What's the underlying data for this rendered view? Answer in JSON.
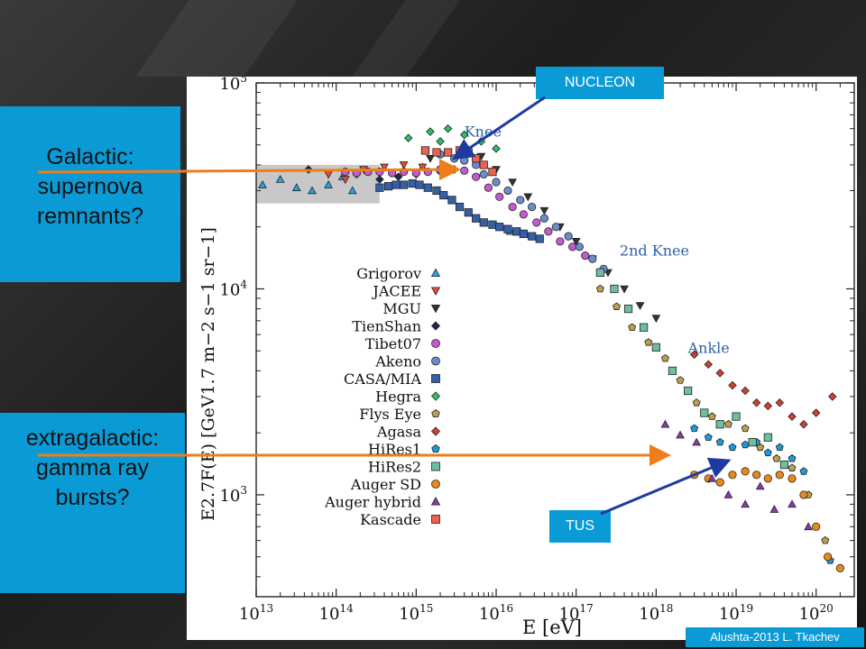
{
  "slide": {
    "galactic_lines": [
      "Galactic:",
      "supernova",
      "remnants?"
    ],
    "extragalactic_lines": [
      "extragalactic:",
      "gamma ray",
      "bursts?"
    ],
    "nucleon_label": "NUCLEON",
    "tus_label": "TUS",
    "credit": "Alushta-2013  L. Tkachev",
    "colors": {
      "callout_bg": "#0a9bd6",
      "arrow_orange": "#f07c1a",
      "arrow_blue": "#1f3a9e"
    }
  },
  "chart_data": {
    "type": "scatter",
    "title": "",
    "xlabel": "E  [eV]",
    "ylabel": "E2.7F(E) [GeV1.7 m−2 s−1 sr−1]",
    "x_scale": "log",
    "y_scale": "log",
    "xlim": [
      10000000000000.0,
      3e+20
    ],
    "ylim": [
      320,
      100000
    ],
    "x_ticks": [
      "10^13",
      "10^14",
      "10^15",
      "10^16",
      "10^17",
      "10^18",
      "10^19",
      "10^20"
    ],
    "y_ticks": [
      "10^3",
      "10^4",
      "10^5"
    ],
    "annotations": [
      {
        "text": "Knee",
        "x": 4000000000000000.0,
        "y": 55000
      },
      {
        "text": "2nd Knee",
        "x": 3.5e+17,
        "y": 14500
      },
      {
        "text": "Ankle",
        "x": 2.5e+18,
        "y": 4900
      }
    ],
    "band": {
      "x": [
        10000000000000.0,
        350000000000000.0
      ],
      "y": [
        26000,
        40000
      ]
    },
    "legend_position": "left",
    "series": [
      {
        "name": "Grigorov",
        "marker": "triangle-up",
        "color": "#29a3e0",
        "points": [
          [
            12000000000000.0,
            32000
          ],
          [
            20000000000000.0,
            34000
          ],
          [
            32000000000000.0,
            31000
          ],
          [
            50000000000000.0,
            30000
          ],
          [
            80000000000000.0,
            32000
          ],
          [
            120000000000000.0,
            35000
          ],
          [
            160000000000000.0,
            30000
          ],
          [
            1.5e+16,
            19000
          ],
          [
            1200000000000000.0,
            39000
          ]
        ]
      },
      {
        "name": "JACEE",
        "marker": "triangle-down",
        "color": "#e84a3a",
        "points": [
          [
            80000000000000.0,
            36000
          ],
          [
            130000000000000.0,
            34000
          ],
          [
            220000000000000.0,
            38000
          ],
          [
            400000000000000.0,
            39000
          ],
          [
            700000000000000.0,
            40000
          ],
          [
            1200000000000000.0,
            39000
          ]
        ]
      },
      {
        "name": "MGU",
        "marker": "triangle-down",
        "color": "#333333",
        "points": [
          [
            1500000000000000.0,
            43000
          ],
          [
            2500000000000000.0,
            46000
          ],
          [
            4000000000000000.0,
            48000
          ],
          [
            6500000000000000.0,
            44000
          ],
          [
            1e+16,
            38000
          ],
          [
            1.6e+16,
            33000
          ],
          [
            2.5e+16,
            28000
          ],
          [
            4e+16,
            24000
          ],
          [
            6.3e+16,
            20000
          ],
          [
            1e+17,
            17000
          ],
          [
            1.6e+17,
            14000
          ],
          [
            2.5e+17,
            12000
          ],
          [
            4e+17,
            10000
          ],
          [
            6.3e+17,
            8300
          ],
          [
            1e+18,
            7200
          ]
        ]
      },
      {
        "name": "TienShan",
        "marker": "diamond",
        "color": "#1a2a4a",
        "points": [
          [
            45000000000000.0,
            38000
          ],
          [
            180000000000000.0,
            36000
          ],
          [
            350000000000000.0,
            34000
          ],
          [
            600000000000000.0,
            35000
          ],
          [
            1000000000000000.0,
            36000
          ],
          [
            2000000000000000.0,
            37000
          ],
          [
            3000000000000000.0,
            38000
          ]
        ]
      },
      {
        "name": "Tibet07",
        "marker": "circle",
        "color": "#c35ad0",
        "points": [
          [
            130000000000000.0,
            37000
          ],
          [
            180000000000000.0,
            36500
          ],
          [
            250000000000000.0,
            37000
          ],
          [
            350000000000000.0,
            37000
          ],
          [
            500000000000000.0,
            36500
          ],
          [
            700000000000000.0,
            37000
          ],
          [
            1000000000000000.0,
            36500
          ],
          [
            1400000000000000.0,
            37000
          ],
          [
            2000000000000000.0,
            38000
          ],
          [
            2800000000000000.0,
            38000
          ],
          [
            4000000000000000.0,
            37500
          ],
          [
            5600000000000000.0,
            35000
          ],
          [
            8000000000000000.0,
            31000
          ],
          [
            1.1e+16,
            28000
          ],
          [
            1.6e+16,
            25000
          ],
          [
            2.2e+16,
            23000
          ],
          [
            3.2e+16,
            21000
          ],
          [
            4.5e+16,
            19000
          ],
          [
            6.3e+16,
            17000
          ],
          [
            9e+16,
            16000
          ],
          [
            1.3e+17,
            14500
          ]
        ]
      },
      {
        "name": "Akeno",
        "marker": "circle",
        "color": "#6a8cc8",
        "points": [
          [
            2000000000000000.0,
            45000
          ],
          [
            3000000000000000.0,
            43000
          ],
          [
            4000000000000000.0,
            42000
          ],
          [
            5600000000000000.0,
            40000
          ],
          [
            7000000000000000.0,
            36000
          ],
          [
            1e+16,
            33000
          ],
          [
            1.4e+16,
            30000
          ],
          [
            2e+16,
            27000
          ],
          [
            2.8e+16,
            25000
          ],
          [
            4e+16,
            22000
          ],
          [
            5.6e+16,
            20000
          ],
          [
            8e+16,
            18000
          ],
          [
            1.1e+17,
            16000
          ],
          [
            1.6e+17,
            14000
          ],
          [
            2.2e+17,
            12500
          ]
        ]
      },
      {
        "name": "CASA/MIA",
        "marker": "square",
        "color": "#3560a8",
        "points": [
          [
            350000000000000.0,
            31000
          ],
          [
            450000000000000.0,
            31500
          ],
          [
            560000000000000.0,
            32000
          ],
          [
            700000000000000.0,
            32000
          ],
          [
            900000000000000.0,
            32500
          ],
          [
            1100000000000000.0,
            32000
          ],
          [
            1400000000000000.0,
            31000
          ],
          [
            1800000000000000.0,
            30000
          ],
          [
            2200000000000000.0,
            28500
          ],
          [
            2800000000000000.0,
            27000
          ],
          [
            3500000000000000.0,
            25000
          ],
          [
            4500000000000000.0,
            23500
          ],
          [
            5600000000000000.0,
            22000
          ],
          [
            7000000000000000.0,
            21000
          ],
          [
            9000000000000000.0,
            20500
          ],
          [
            1.1e+16,
            20000
          ],
          [
            1.4e+16,
            19500
          ],
          [
            1.8e+16,
            19000
          ],
          [
            2.2e+16,
            18500
          ],
          [
            2.8e+16,
            18000
          ],
          [
            3.5e+16,
            17500
          ]
        ]
      },
      {
        "name": "Hegra",
        "marker": "diamond",
        "color": "#2fbf6a",
        "points": [
          [
            1500000000000000.0,
            58000
          ],
          [
            2500000000000000.0,
            60000
          ],
          [
            4000000000000000.0,
            56000
          ],
          [
            6500000000000000.0,
            52000
          ],
          [
            1e+16,
            48000
          ],
          [
            2000000000000000.0,
            52000
          ],
          [
            800000000000000.0,
            54000
          ]
        ]
      },
      {
        "name": "Flys Eye",
        "marker": "pentagon",
        "color": "#b8a050",
        "points": [
          [
            2e+17,
            10000
          ],
          [
            3.2e+17,
            8200
          ],
          [
            5e+17,
            6500
          ],
          [
            8e+17,
            5500
          ],
          [
            1.3e+18,
            4600
          ],
          [
            2e+18,
            3600
          ],
          [
            3.2e+18,
            2800
          ],
          [
            5e+18,
            2400
          ],
          [
            8e+18,
            2200
          ],
          [
            1.3e+19,
            2100
          ],
          [
            2e+19,
            1700
          ],
          [
            3.2e+19,
            1500
          ],
          [
            5e+19,
            1350
          ],
          [
            8e+19,
            1000
          ],
          [
            1.3e+20,
            600
          ]
        ]
      },
      {
        "name": "Agasa",
        "marker": "diamond",
        "color": "#d0402a",
        "points": [
          [
            3e+18,
            4800
          ],
          [
            4.5e+18,
            4300
          ],
          [
            6.3e+18,
            3900
          ],
          [
            9e+18,
            3400
          ],
          [
            1.3e+19,
            3200
          ],
          [
            1.8e+19,
            2800
          ],
          [
            2.5e+19,
            2700
          ],
          [
            3.5e+19,
            2800
          ],
          [
            5e+19,
            2400
          ],
          [
            7e+19,
            2200
          ],
          [
            1e+20,
            2500
          ],
          [
            1.6e+20,
            3000
          ]
        ]
      },
      {
        "name": "HiRes1",
        "marker": "pentagon",
        "color": "#1f9ad9",
        "points": [
          [
            3e+18,
            2100
          ],
          [
            4.5e+18,
            1900
          ],
          [
            6.3e+18,
            1800
          ],
          [
            9e+18,
            1700
          ],
          [
            1.3e+19,
            1750
          ],
          [
            1.8e+19,
            1800
          ],
          [
            2.5e+19,
            1600
          ],
          [
            3.5e+19,
            1700
          ],
          [
            5e+19,
            1500
          ],
          [
            7e+19,
            1300
          ],
          [
            1e+20,
            700
          ],
          [
            1.5e+20,
            480
          ]
        ]
      },
      {
        "name": "HiRes2",
        "marker": "square",
        "color": "#6cc0a0",
        "points": [
          [
            2e+17,
            12000
          ],
          [
            3e+17,
            10000
          ],
          [
            4.5e+17,
            8000
          ],
          [
            7e+17,
            6500
          ],
          [
            1e+18,
            5200
          ],
          [
            1.6e+18,
            4000
          ],
          [
            2.5e+18,
            3200
          ],
          [
            4e+18,
            2500
          ],
          [
            6.3e+18,
            2200
          ],
          [
            1e+19,
            2400
          ],
          [
            1.6e+19,
            1800
          ],
          [
            2.5e+19,
            1900
          ],
          [
            4e+19,
            1400
          ]
        ]
      },
      {
        "name": "Auger SD",
        "marker": "circle",
        "color": "#e88a1a",
        "points": [
          [
            3e+18,
            1250
          ],
          [
            4.5e+18,
            1200
          ],
          [
            6.3e+18,
            1150
          ],
          [
            9e+18,
            1250
          ],
          [
            1.3e+19,
            1300
          ],
          [
            1.8e+19,
            1250
          ],
          [
            2.5e+19,
            1200
          ],
          [
            3.5e+19,
            1250
          ],
          [
            5e+19,
            1200
          ],
          [
            7e+19,
            1000
          ],
          [
            1e+20,
            700
          ],
          [
            1.4e+20,
            500
          ],
          [
            2e+20,
            440
          ]
        ]
      },
      {
        "name": "Auger hybrid",
        "marker": "triangle-up",
        "color": "#8a3ab0",
        "points": [
          [
            1.3e+18,
            2200
          ],
          [
            2e+18,
            1950
          ],
          [
            3.2e+18,
            1800
          ],
          [
            5e+18,
            1200
          ],
          [
            8e+18,
            1000
          ],
          [
            1.3e+19,
            900
          ],
          [
            2e+19,
            1100
          ],
          [
            3e+19,
            850
          ],
          [
            5e+19,
            900
          ],
          [
            8e+19,
            700
          ]
        ]
      },
      {
        "name": "Kascade",
        "marker": "square-cross",
        "color": "#f06050",
        "points": [
          [
            1300000000000000.0,
            47000
          ],
          [
            1800000000000000.0,
            46000
          ],
          [
            2500000000000000.0,
            46000
          ],
          [
            3500000000000000.0,
            47000
          ],
          [
            4500000000000000.0,
            46000
          ],
          [
            5600000000000000.0,
            43000
          ],
          [
            7000000000000000.0,
            40000
          ],
          [
            9000000000000000.0,
            37000
          ]
        ]
      }
    ]
  }
}
